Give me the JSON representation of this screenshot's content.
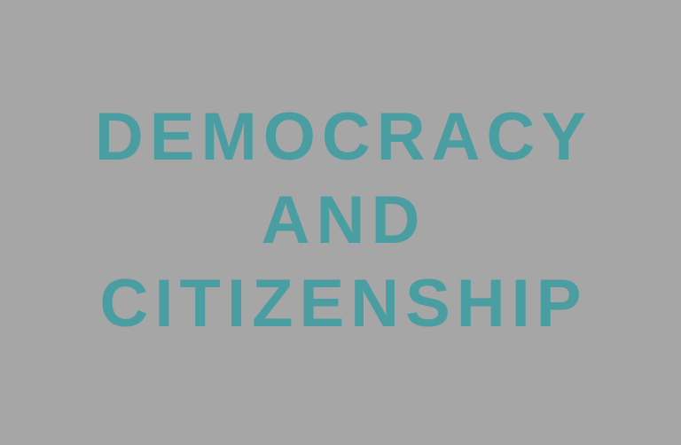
{
  "title": {
    "lines": [
      "DEMOCRACY",
      "AND",
      "CITIZENSHIP"
    ]
  },
  "colors": {
    "background": "#a6a6a6",
    "text": "#4a9ea1"
  }
}
